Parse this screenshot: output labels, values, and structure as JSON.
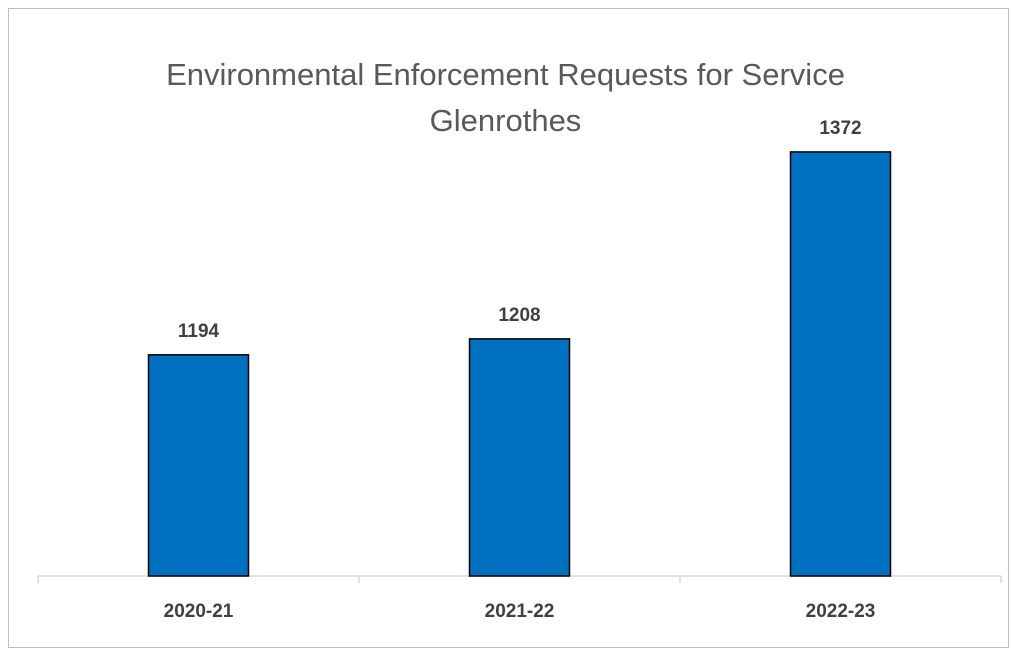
{
  "chart_data": {
    "type": "bar",
    "title": "Environmental Enforcement Requests for Service",
    "subtitle": "Glenrothes",
    "categories": [
      "2020-21",
      "2021-22",
      "2022-23"
    ],
    "values": [
      1194,
      1208,
      1372
    ],
    "xlabel": "",
    "ylabel": "",
    "ylim": [
      1000,
      1400
    ],
    "grid": false,
    "legend": "none",
    "data_labels": true,
    "colors": {
      "bar": "#0070C0",
      "bar_outline": "#000000",
      "axis": "#d9d9d9",
      "title": "#595959",
      "labels": "#404040"
    }
  }
}
